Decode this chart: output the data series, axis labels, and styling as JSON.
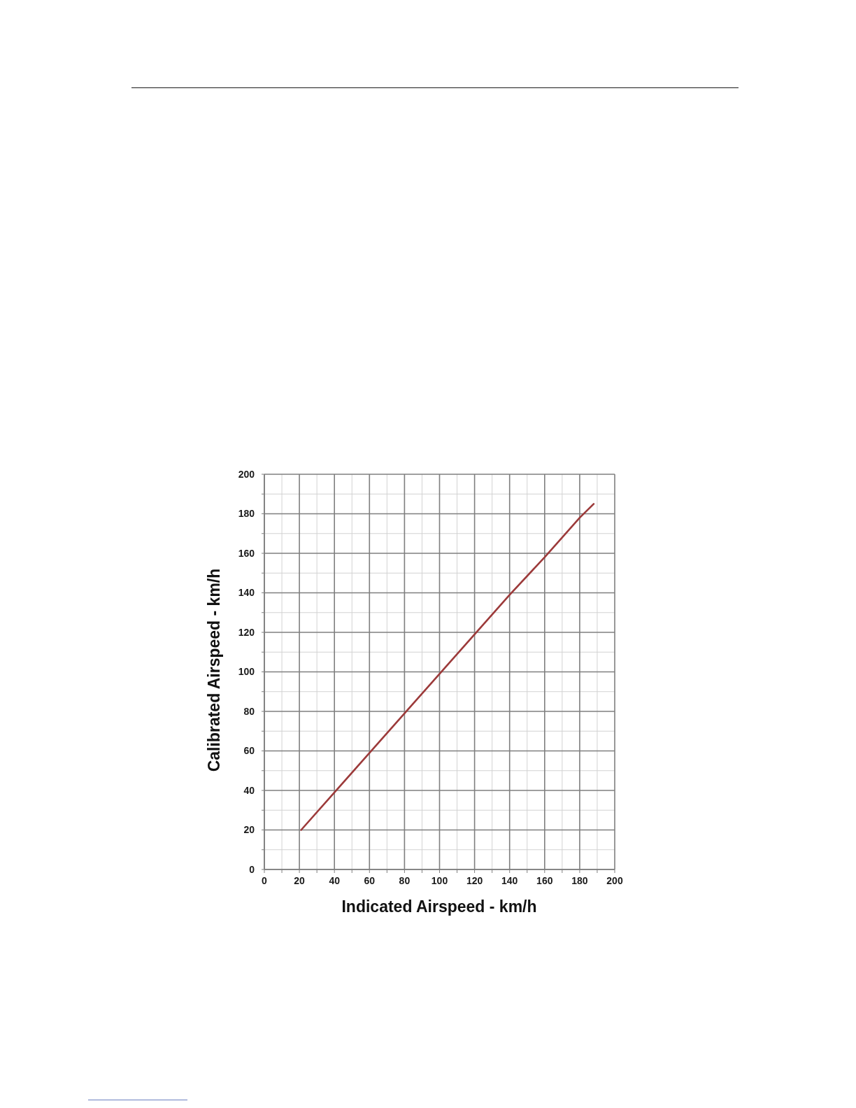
{
  "chart_data": {
    "type": "line",
    "xlabel": "Indicated Airspeed - km/h",
    "ylabel": "Calibrated Airspeed - km/h",
    "x": [
      21,
      40,
      60,
      80,
      100,
      120,
      140,
      160,
      180,
      188
    ],
    "series": [
      {
        "color": "#9c3a3a",
        "values": [
          20,
          39,
          59,
          79,
          99,
          119,
          139,
          158,
          178,
          185
        ]
      }
    ],
    "xlim": [
      0,
      200
    ],
    "ylim": [
      0,
      200
    ],
    "xticks": [
      0,
      {
        "value": 10,
        "label": null
      },
      20,
      {
        "value": 30,
        "label": null
      },
      40,
      {
        "value": 50,
        "label": null
      },
      60,
      {
        "value": 70,
        "label": null
      },
      80,
      {
        "value": 90,
        "label": null
      },
      100,
      {
        "value": 110,
        "label": null
      },
      120,
      {
        "value": 130,
        "label": null
      },
      140,
      {
        "value": 150,
        "label": null
      },
      160,
      {
        "value": 170,
        "label": null
      },
      180,
      {
        "value": 190,
        "label": null
      },
      200
    ],
    "yticks": [
      0,
      {
        "value": 10,
        "label": null
      },
      20,
      {
        "value": 30,
        "label": null
      },
      40,
      {
        "value": 50,
        "label": null
      },
      60,
      {
        "value": 70,
        "label": null
      },
      80,
      {
        "value": 90,
        "label": null
      },
      100,
      {
        "value": 110,
        "label": null
      },
      120,
      {
        "value": 130,
        "label": null
      },
      140,
      {
        "value": 150,
        "label": null
      },
      160,
      {
        "value": 170,
        "label": null
      },
      180,
      {
        "value": 190,
        "label": null
      },
      200
    ],
    "grid": true,
    "marker": "none",
    "line_style": "solid"
  }
}
